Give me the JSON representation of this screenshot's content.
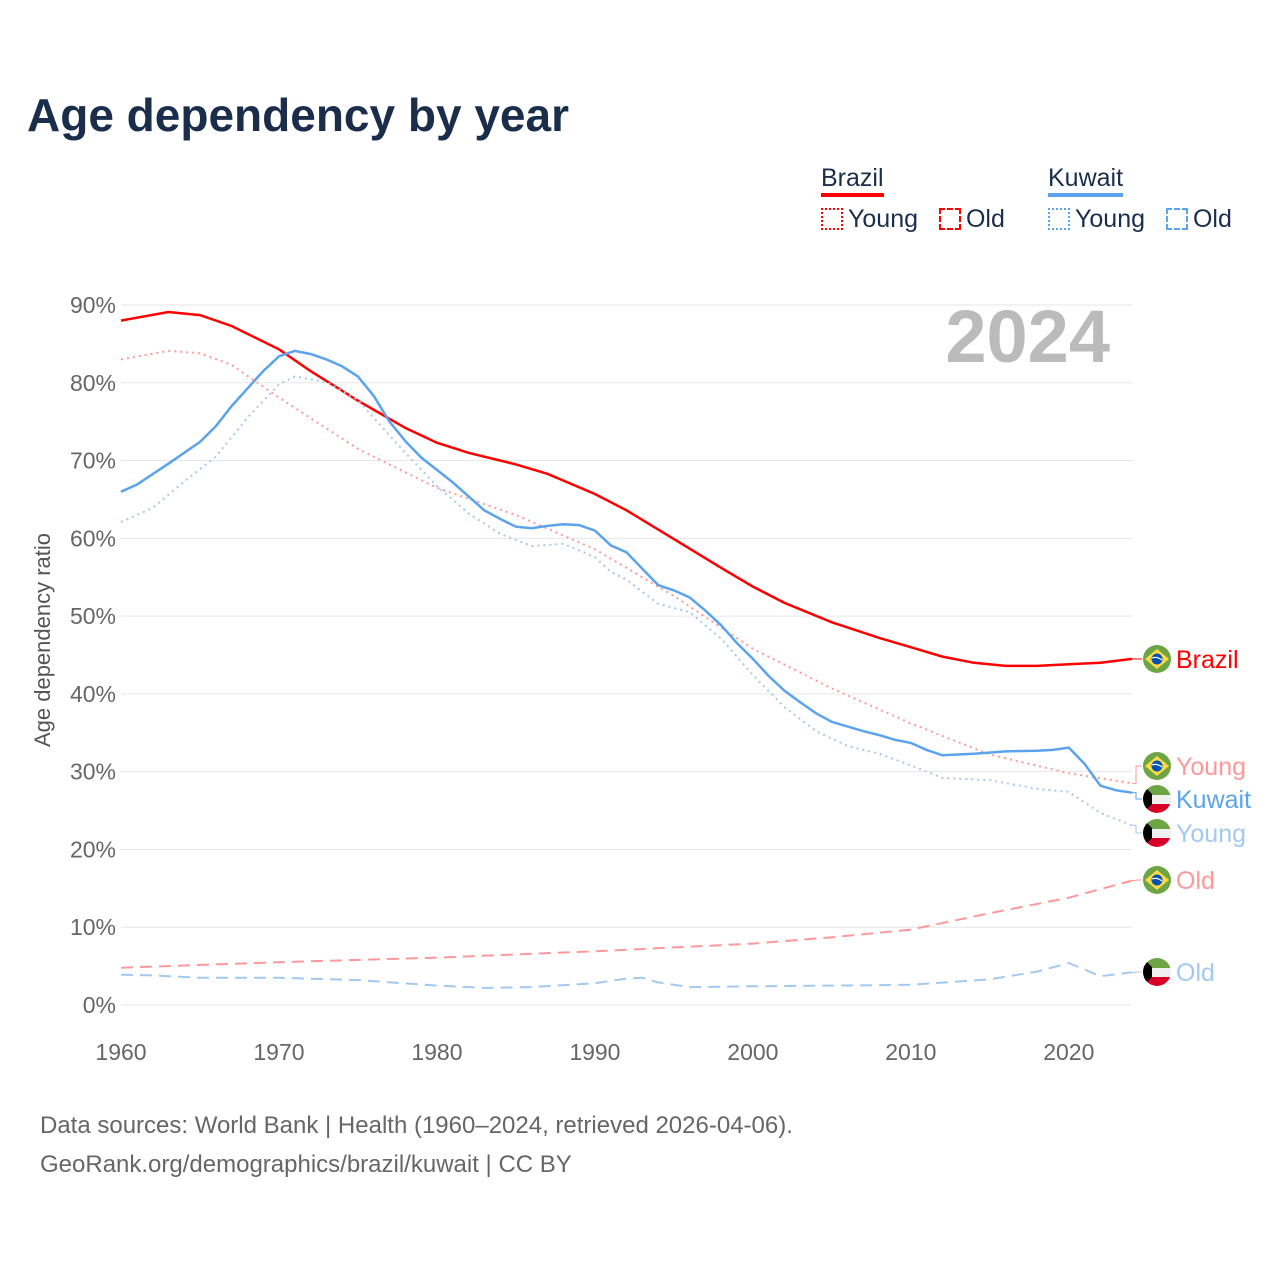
{
  "title": "Age dependency by year",
  "legend": {
    "brazil": {
      "label": "Brazil",
      "young": "Young",
      "old": "Old"
    },
    "kuwait": {
      "label": "Kuwait",
      "young": "Young",
      "old": "Old"
    }
  },
  "footer": {
    "line1": "Data sources: World Bank | Health (1960–2024, retrieved 2026-04-06).",
    "line2": "GeoRank.org/demographics/brazil/kuwait | CC BY"
  },
  "chart_data": {
    "type": "line",
    "title": "Age dependency by year",
    "ylabel": "Age dependency ratio",
    "xlabel": "",
    "year_label": "2024",
    "xlim": [
      1960,
      2024
    ],
    "ylim": [
      0,
      90
    ],
    "x_ticks": [
      "1960",
      "1970",
      "1980",
      "1990",
      "2000",
      "2010",
      "2020"
    ],
    "y_ticks": [
      "0%",
      "10%",
      "20%",
      "30%",
      "40%",
      "50%",
      "60%",
      "70%",
      "80%",
      "90%"
    ],
    "colors": {
      "brazil": "#ff0000",
      "brazil_light": "#ff9999",
      "kuwait": "#5ba3ec",
      "kuwait_light": "#a3c9f0"
    },
    "series": [
      {
        "name": "Brazil",
        "end_label": "Brazil",
        "style": "solid",
        "color": "#ff0000",
        "flag": "brazil",
        "points": [
          [
            1960,
            88
          ],
          [
            1963,
            89.1
          ],
          [
            1965,
            88.7
          ],
          [
            1967,
            87.3
          ],
          [
            1970,
            84.3
          ],
          [
            1972,
            81.5
          ],
          [
            1975,
            77.7
          ],
          [
            1978,
            74.2
          ],
          [
            1980,
            72.3
          ],
          [
            1982,
            71
          ],
          [
            1985,
            69.5
          ],
          [
            1987,
            68.3
          ],
          [
            1990,
            65.7
          ],
          [
            1992,
            63.6
          ],
          [
            1995,
            59.9
          ],
          [
            1998,
            56.2
          ],
          [
            2000,
            53.8
          ],
          [
            2002,
            51.7
          ],
          [
            2005,
            49.2
          ],
          [
            2008,
            47.2
          ],
          [
            2010,
            46
          ],
          [
            2012,
            44.8
          ],
          [
            2014,
            44
          ],
          [
            2016,
            43.6
          ],
          [
            2018,
            43.6
          ],
          [
            2020,
            43.8
          ],
          [
            2022,
            44
          ],
          [
            2024,
            44.5
          ]
        ]
      },
      {
        "name": "Brazil Young",
        "end_label": "Young",
        "style": "dotted",
        "color": "#ff9999",
        "flag": "brazil",
        "points": [
          [
            1960,
            83
          ],
          [
            1963,
            84.1
          ],
          [
            1965,
            83.8
          ],
          [
            1967,
            82.3
          ],
          [
            1970,
            78.1
          ],
          [
            1975,
            71.5
          ],
          [
            1980,
            66.5
          ],
          [
            1985,
            63
          ],
          [
            1990,
            58.6
          ],
          [
            1995,
            52.6
          ],
          [
            2000,
            45.8
          ],
          [
            2005,
            40.7
          ],
          [
            2010,
            36.2
          ],
          [
            2015,
            32.2
          ],
          [
            2020,
            29.8
          ],
          [
            2024,
            28.5
          ]
        ]
      },
      {
        "name": "Brazil Old",
        "end_label": "Old",
        "style": "dashed",
        "color": "#ff9999",
        "flag": "brazil",
        "points": [
          [
            1960,
            4.8
          ],
          [
            1970,
            5.5
          ],
          [
            1980,
            6.1
          ],
          [
            1990,
            6.9
          ],
          [
            2000,
            7.9
          ],
          [
            2005,
            8.7
          ],
          [
            2010,
            9.7
          ],
          [
            2015,
            11.8
          ],
          [
            2020,
            13.8
          ],
          [
            2024,
            16
          ]
        ]
      },
      {
        "name": "Kuwait",
        "end_label": "Kuwait",
        "style": "solid",
        "color": "#5ba3ec",
        "flag": "kuwait",
        "points": [
          [
            1960,
            66
          ],
          [
            1961,
            66.9
          ],
          [
            1963,
            69.6
          ],
          [
            1965,
            72.4
          ],
          [
            1966,
            74.4
          ],
          [
            1967,
            77
          ],
          [
            1969,
            81.5
          ],
          [
            1970,
            83.4
          ],
          [
            1971,
            84.1
          ],
          [
            1972,
            83.7
          ],
          [
            1973,
            83
          ],
          [
            1974,
            82.1
          ],
          [
            1975,
            80.8
          ],
          [
            1976,
            78.3
          ],
          [
            1977,
            75
          ],
          [
            1978,
            72.5
          ],
          [
            1979,
            70.4
          ],
          [
            1980,
            68.8
          ],
          [
            1981,
            67.2
          ],
          [
            1982,
            65.4
          ],
          [
            1983,
            63.6
          ],
          [
            1984,
            62.5
          ],
          [
            1985,
            61.5
          ],
          [
            1986,
            61.3
          ],
          [
            1987,
            61.6
          ],
          [
            1988,
            61.8
          ],
          [
            1989,
            61.7
          ],
          [
            1990,
            61
          ],
          [
            1991,
            59.1
          ],
          [
            1992,
            58.2
          ],
          [
            1993,
            56.1
          ],
          [
            1994,
            54
          ],
          [
            1995,
            53.3
          ],
          [
            1996,
            52.4
          ],
          [
            1997,
            50.7
          ],
          [
            1998,
            48.8
          ],
          [
            1999,
            46.5
          ],
          [
            2000,
            44.5
          ],
          [
            2001,
            42.3
          ],
          [
            2002,
            40.4
          ],
          [
            2003,
            38.9
          ],
          [
            2004,
            37.5
          ],
          [
            2005,
            36.4
          ],
          [
            2006,
            35.8
          ],
          [
            2007,
            35.2
          ],
          [
            2008,
            34.7
          ],
          [
            2009,
            34.1
          ],
          [
            2010,
            33.7
          ],
          [
            2011,
            32.8
          ],
          [
            2012,
            32.1
          ],
          [
            2014,
            32.3
          ],
          [
            2016,
            32.6
          ],
          [
            2018,
            32.7
          ],
          [
            2019,
            32.8
          ],
          [
            2020,
            33.1
          ],
          [
            2021,
            31
          ],
          [
            2022,
            28.2
          ],
          [
            2023,
            27.6
          ],
          [
            2024,
            27.3
          ]
        ]
      },
      {
        "name": "Kuwait Young",
        "end_label": "Young",
        "style": "dotted",
        "color": "#a3c9f0",
        "flag": "kuwait",
        "points": [
          [
            1960,
            62.1
          ],
          [
            1962,
            63.9
          ],
          [
            1964,
            67.3
          ],
          [
            1966,
            70.5
          ],
          [
            1968,
            75.5
          ],
          [
            1970,
            79.8
          ],
          [
            1971,
            80.8
          ],
          [
            1973,
            80.1
          ],
          [
            1975,
            77.8
          ],
          [
            1976,
            75.5
          ],
          [
            1978,
            71
          ],
          [
            1980,
            66.7
          ],
          [
            1982,
            63.2
          ],
          [
            1984,
            60.6
          ],
          [
            1986,
            59
          ],
          [
            1988,
            59.3
          ],
          [
            1990,
            57.6
          ],
          [
            1991,
            55.7
          ],
          [
            1992,
            54.7
          ],
          [
            1994,
            51.6
          ],
          [
            1996,
            50.5
          ],
          [
            1998,
            47.1
          ],
          [
            2000,
            42.4
          ],
          [
            2002,
            38.3
          ],
          [
            2004,
            35.2
          ],
          [
            2006,
            33.3
          ],
          [
            2008,
            32.3
          ],
          [
            2010,
            30.8
          ],
          [
            2012,
            29.2
          ],
          [
            2015,
            28.9
          ],
          [
            2018,
            27.8
          ],
          [
            2020,
            27.4
          ],
          [
            2022,
            24.7
          ],
          [
            2024,
            23.1
          ]
        ]
      },
      {
        "name": "Kuwait Old",
        "end_label": "Old",
        "style": "dashed",
        "color": "#a3c9f0",
        "flag": "kuwait",
        "points": [
          [
            1960,
            3.9
          ],
          [
            1962,
            3.8
          ],
          [
            1965,
            3.5
          ],
          [
            1970,
            3.5
          ],
          [
            1975,
            3.2
          ],
          [
            1980,
            2.5
          ],
          [
            1983,
            2.2
          ],
          [
            1986,
            2.3
          ],
          [
            1990,
            2.8
          ],
          [
            1992,
            3.4
          ],
          [
            1993,
            3.5
          ],
          [
            1994,
            2.9
          ],
          [
            1996,
            2.3
          ],
          [
            2000,
            2.4
          ],
          [
            2005,
            2.5
          ],
          [
            2010,
            2.6
          ],
          [
            2015,
            3.3
          ],
          [
            2018,
            4.3
          ],
          [
            2020,
            5.4
          ],
          [
            2022,
            3.7
          ],
          [
            2024,
            4.2
          ]
        ]
      }
    ]
  }
}
